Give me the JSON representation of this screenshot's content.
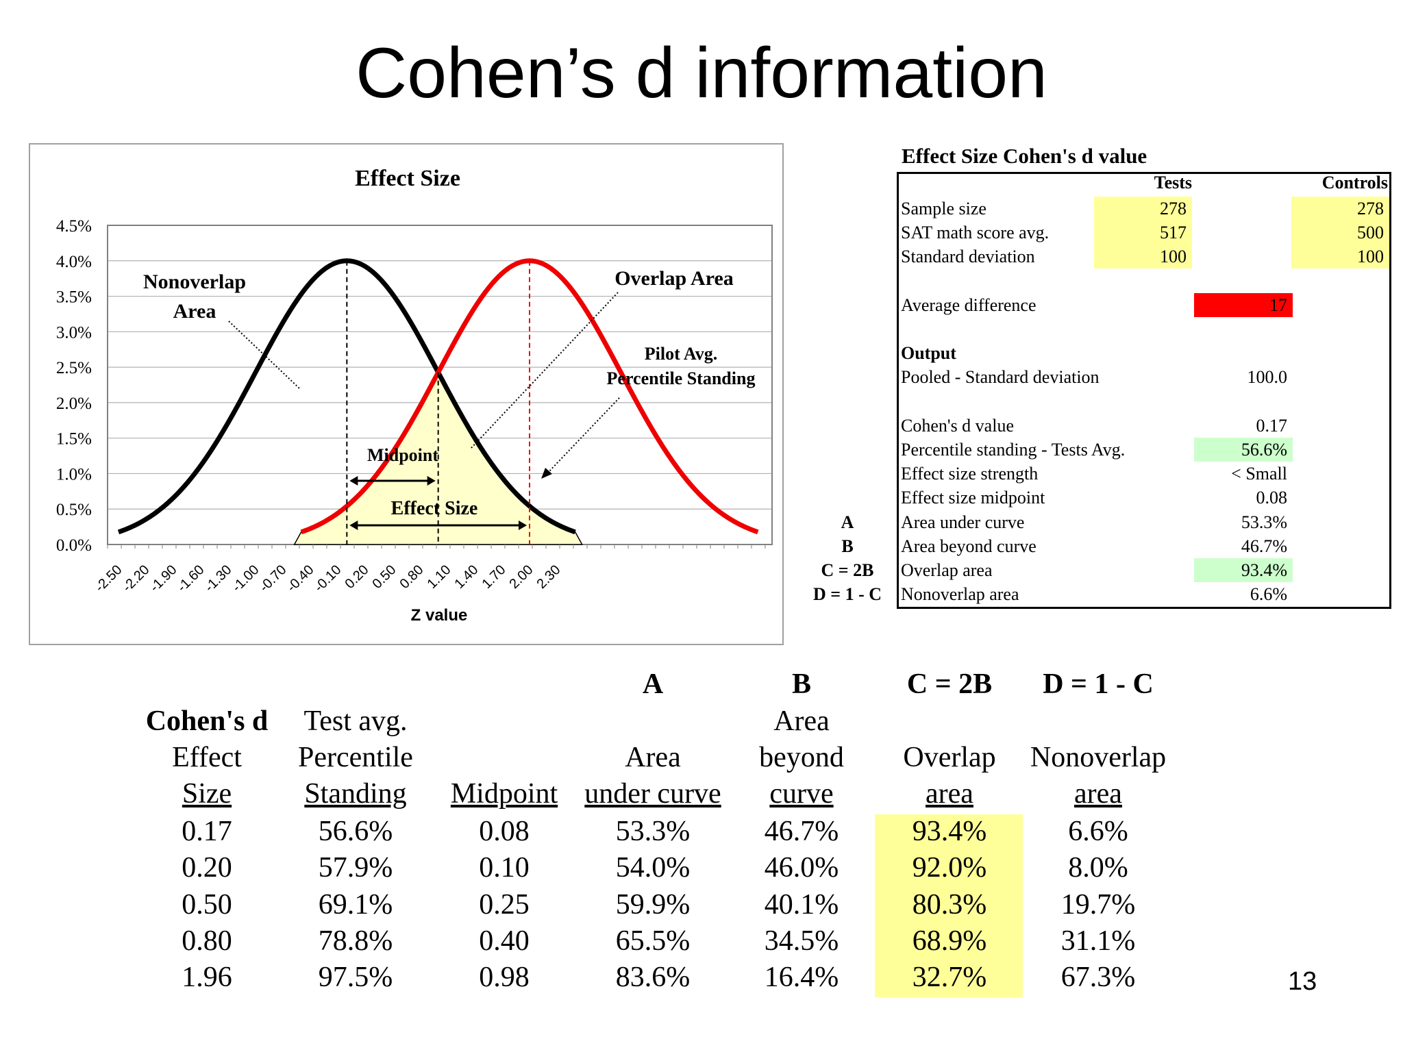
{
  "title": "Cohen’s d information",
  "page_number": "13",
  "chart_data": {
    "type": "line",
    "title": "Effect Size",
    "xlabel": "Z value",
    "ylabel": "",
    "x_ticks": [
      "-2.50",
      "-2.20",
      "-1.90",
      "-1.60",
      "-1.30",
      "-1.00",
      "-0.70",
      "-0.40",
      "-0.10",
      "0.20",
      "0.50",
      "0.80",
      "1.10",
      "1.40",
      "1.70",
      "2.00",
      "2.30"
    ],
    "y_ticks": [
      "0.0%",
      "0.5%",
      "1.0%",
      "1.5%",
      "2.0%",
      "2.5%",
      "3.0%",
      "3.5%",
      "4.0%",
      "4.5%"
    ],
    "ylim": [
      0,
      0.045
    ],
    "grid": true,
    "series": [
      {
        "color": "#000000",
        "mean": 0,
        "sd": 1,
        "x_range": [
          -2.5,
          2.5
        ],
        "peak": 0.04
      },
      {
        "color": "#ee0000",
        "mean": 2,
        "sd": 1,
        "x_range": [
          -0.5,
          4.5
        ],
        "peak": 0.04
      }
    ],
    "shaded_overlap": {
      "color": "#ffffcc",
      "x_range": [
        -0.5,
        2.5
      ]
    },
    "annotations": {
      "nonoverlap_line1": "Nonoverlap",
      "nonoverlap_line2": "Area",
      "overlap": "Overlap Area",
      "pilot_line1": "Pilot Avg.",
      "pilot_line2": "Percentile Standing",
      "midpoint": "Midpoint",
      "effect_size": "Effect Size"
    }
  },
  "summary": {
    "title": "Effect Size Cohen's d value",
    "col_tests": "Tests",
    "col_controls": "Controls",
    "inputs": [
      {
        "label": "Sample size",
        "tests": "278",
        "controls": "278"
      },
      {
        "label": "SAT math score avg.",
        "tests": "517",
        "controls": "500"
      },
      {
        "label": "Standard deviation",
        "tests": "100",
        "controls": "100"
      }
    ],
    "avg_diff_label": "Average difference",
    "avg_diff_value": "17",
    "output_label": "Output",
    "pooled_label": "Pooled - Standard deviation",
    "pooled_value": "100.0",
    "outputs": [
      {
        "side": "",
        "label": "Cohen's d value",
        "value": "0.17",
        "highlight": false
      },
      {
        "side": "",
        "label": "Percentile standing - Tests Avg.",
        "value": "56.6%",
        "highlight": true
      },
      {
        "side": "",
        "label": "Effect size strength",
        "value": "< Small",
        "highlight": false
      },
      {
        "side": "",
        "label": "Effect size midpoint",
        "value": "0.08",
        "highlight": false
      },
      {
        "side": "A",
        "label": "Area under curve",
        "value": "53.3%",
        "highlight": false
      },
      {
        "side": "B",
        "label": "Area beyond curve",
        "value": "46.7%",
        "highlight": false
      },
      {
        "side": "C = 2B",
        "label": "Overlap area",
        "value": "93.4%",
        "highlight": true
      },
      {
        "side": "D = 1 - C",
        "label": "Nonoverlap area",
        "value": "6.6%",
        "highlight": false
      }
    ]
  },
  "bottom_table": {
    "letters": [
      "A",
      "B",
      "C = 2B",
      "D = 1 - C"
    ],
    "headers": [
      [
        "Cohen's d",
        "Effect",
        "Size"
      ],
      [
        "Test avg.",
        "Percentile",
        "Standing"
      ],
      [
        "",
        "",
        "Midpoint"
      ],
      [
        "",
        "Area",
        "under curve"
      ],
      [
        "Area",
        "beyond",
        "curve"
      ],
      [
        "",
        "Overlap",
        "area"
      ],
      [
        "",
        "Nonoverlap",
        "area"
      ]
    ],
    "rows": [
      [
        "0.17",
        "56.6%",
        "0.08",
        "53.3%",
        "46.7%",
        "93.4%",
        "6.6%"
      ],
      [
        "0.20",
        "57.9%",
        "0.10",
        "54.0%",
        "46.0%",
        "92.0%",
        "8.0%"
      ],
      [
        "0.50",
        "69.1%",
        "0.25",
        "59.9%",
        "40.1%",
        "80.3%",
        "19.7%"
      ],
      [
        "0.80",
        "78.8%",
        "0.40",
        "65.5%",
        "34.5%",
        "68.9%",
        "31.1%"
      ],
      [
        "1.96",
        "97.5%",
        "0.98",
        "83.6%",
        "16.4%",
        "32.7%",
        "67.3%"
      ]
    ]
  }
}
